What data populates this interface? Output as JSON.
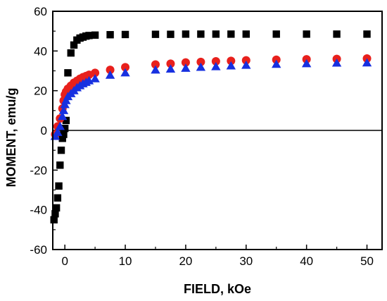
{
  "chart_data": {
    "type": "scatter",
    "title": "",
    "xlabel": "FIELD,  kOe",
    "ylabel": "MOMENT,  emu/g",
    "xlim": [
      -2,
      52.5
    ],
    "ylim": [
      -60,
      60
    ],
    "x_ticks": [
      0,
      10,
      20,
      30,
      40,
      50
    ],
    "y_ticks": [
      -60,
      -40,
      -20,
      0,
      20,
      40,
      60
    ],
    "grid": false,
    "legend": "none",
    "reference_line_y": 0,
    "series": [
      {
        "marker": "square",
        "color": "#000000",
        "x": [
          -1.8,
          -1.6,
          -1.4,
          -1.2,
          -1.0,
          -0.8,
          -0.6,
          -0.4,
          -0.2,
          0.0,
          0.2,
          0.5,
          1.0,
          1.5,
          2.0,
          2.5,
          3.0,
          3.5,
          4.0,
          5.0,
          7.5,
          10,
          15,
          17.5,
          20,
          22.5,
          25,
          27.5,
          30,
          35,
          40,
          45,
          50
        ],
        "y": [
          -45,
          -42,
          -39,
          -34,
          -28,
          -17.5,
          -10,
          -4,
          -2,
          1,
          5,
          29,
          39,
          43,
          45.5,
          46.5,
          47,
          47.5,
          47.8,
          48,
          48.2,
          48.3,
          48.4,
          48.4,
          48.5,
          48.5,
          48.5,
          48.5,
          48.5,
          48.5,
          48.5,
          48.5,
          48.5
        ]
      },
      {
        "marker": "circle",
        "color": "#e8201c",
        "x": [
          -1.6,
          -1.2,
          -0.8,
          -0.4,
          -0.2,
          0.0,
          0.2,
          0.5,
          1.0,
          1.5,
          2.0,
          2.5,
          3.0,
          3.5,
          4.0,
          5.0,
          7.5,
          10,
          15,
          17.5,
          20,
          22.5,
          25,
          27.5,
          30,
          35,
          40,
          45,
          50
        ],
        "y": [
          -2,
          2,
          6,
          11,
          15,
          18,
          19.5,
          21,
          22.5,
          24,
          25,
          26,
          26.8,
          27.4,
          28,
          29,
          30.5,
          31.8,
          33.2,
          33.6,
          34.2,
          34.5,
          34.8,
          35,
          35.3,
          35.6,
          35.8,
          36,
          36.2
        ]
      },
      {
        "marker": "triangle",
        "color": "#1730e0",
        "x": [
          -1.6,
          -1.2,
          -0.8,
          -0.4,
          -0.2,
          0.0,
          0.2,
          0.5,
          1.0,
          1.5,
          2.0,
          2.5,
          3.0,
          3.5,
          4.0,
          5.0,
          7.5,
          10,
          15,
          17.5,
          20,
          22.5,
          25,
          27.5,
          30,
          35,
          40,
          45,
          50
        ],
        "y": [
          -3,
          -1,
          2,
          7,
          10,
          13,
          15,
          17,
          18.5,
          20,
          21.5,
          22.5,
          23.5,
          24.2,
          25,
          26,
          27.8,
          29,
          30.4,
          30.9,
          31.3,
          31.8,
          32.1,
          32.5,
          32.8,
          33.3,
          33.6,
          33.9,
          34
        ]
      }
    ]
  }
}
